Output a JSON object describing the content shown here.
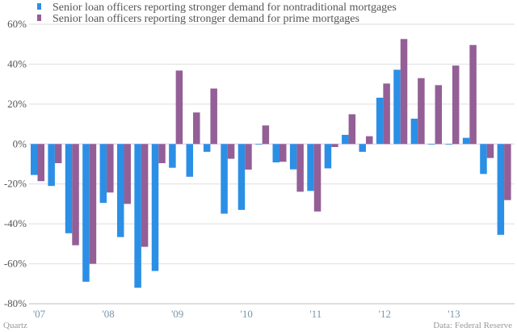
{
  "chart_data": {
    "type": "bar",
    "title": "",
    "xlabel": "",
    "ylabel": "",
    "ylim": [
      -80,
      60
    ],
    "yticks": [
      60,
      40,
      20,
      0,
      -20,
      -40,
      -60,
      -80
    ],
    "ytick_labels": [
      "60%",
      "40%",
      "20%",
      "0%",
      "-20%",
      "-40%",
      "-60%",
      "-80%"
    ],
    "grid": true,
    "legend_position": "top-left",
    "categories": [
      "2007 Q1",
      "2007 Q2",
      "2007 Q3",
      "2007 Q4",
      "2008 Q1",
      "2008 Q2",
      "2008 Q3",
      "2008 Q4",
      "2009 Q1",
      "2009 Q2",
      "2009 Q3",
      "2009 Q4",
      "2010 Q1",
      "2010 Q2",
      "2010 Q3",
      "2010 Q4",
      "2011 Q1",
      "2011 Q2",
      "2011 Q3",
      "2011 Q4",
      "2012 Q1",
      "2012 Q2",
      "2012 Q3",
      "2012 Q4",
      "2013 Q1",
      "2013 Q2",
      "2013 Q3",
      "2013 Q4"
    ],
    "xtick_labels": [
      "'07",
      "'08",
      "'09",
      "'10",
      "'11",
      "'12",
      "'13"
    ],
    "series": [
      {
        "name": "Senior loan officers reporting stronger demand for nontraditional mortgages",
        "color": "#2b8fe6",
        "values": [
          -15.5,
          -21,
          -44.7,
          -69,
          -29.5,
          -46.6,
          -72,
          -63.6,
          -11.9,
          -16.4,
          -3.9,
          -34.9,
          -33,
          0,
          -9.2,
          -12.7,
          -23.5,
          -12.2,
          4.6,
          -3.9,
          23.2,
          37.2,
          12.7,
          0,
          0,
          3.1,
          -15,
          -45.5
        ]
      },
      {
        "name": "Senior loan officers reporting stronger demand for prime mortgages",
        "color": "#935f96",
        "values": [
          -18.6,
          -9.6,
          -50.7,
          -60,
          -24.3,
          -30,
          -51.5,
          -9.6,
          36.8,
          15.8,
          27.8,
          -7.4,
          -12.8,
          9.3,
          -8.9,
          -23.9,
          -33.8,
          -1.5,
          14.9,
          3.9,
          30.3,
          52.6,
          33,
          29.5,
          39.3,
          49.6,
          -7,
          -28.1
        ]
      }
    ]
  },
  "footer": {
    "source_left": "Quartz",
    "source_right": "Data: Federal Reserve"
  }
}
